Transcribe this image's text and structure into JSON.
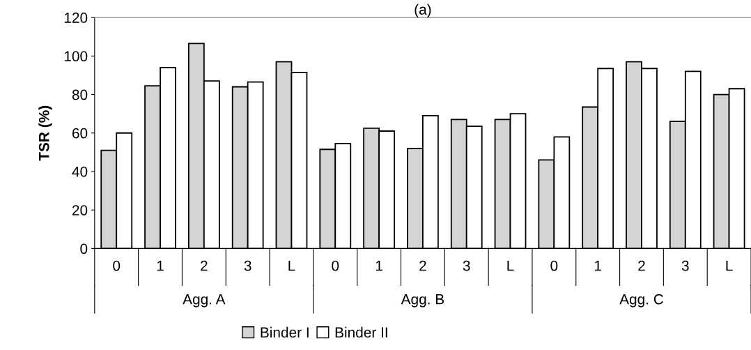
{
  "chart_data": {
    "type": "bar",
    "title": "(a)",
    "ylabel": "TSR (%)",
    "categories": [
      "0",
      "1",
      "2",
      "3",
      "L",
      "0",
      "1",
      "2",
      "3",
      "L",
      "0",
      "1",
      "2",
      "3",
      "L"
    ],
    "annotations": [
      "Agg. A",
      "Agg. B",
      "Agg. C"
    ],
    "series": [
      {
        "name": "Binder I",
        "color": "#d4d4d4",
        "values": [
          51,
          84.5,
          106.5,
          84,
          97,
          51.5,
          62.5,
          52,
          67,
          67,
          46,
          73.5,
          97,
          66,
          80
        ]
      },
      {
        "name": "Binder II",
        "color": "#ffffff",
        "values": [
          60,
          94,
          87,
          86.5,
          91.5,
          54.5,
          61,
          69,
          63.5,
          70,
          58,
          93.5,
          93.5,
          92,
          83
        ]
      }
    ],
    "ylim": [
      0,
      120
    ],
    "yticks": [
      0,
      20,
      40,
      60,
      80,
      100,
      120
    ],
    "grid": false,
    "legend": "bottom"
  }
}
